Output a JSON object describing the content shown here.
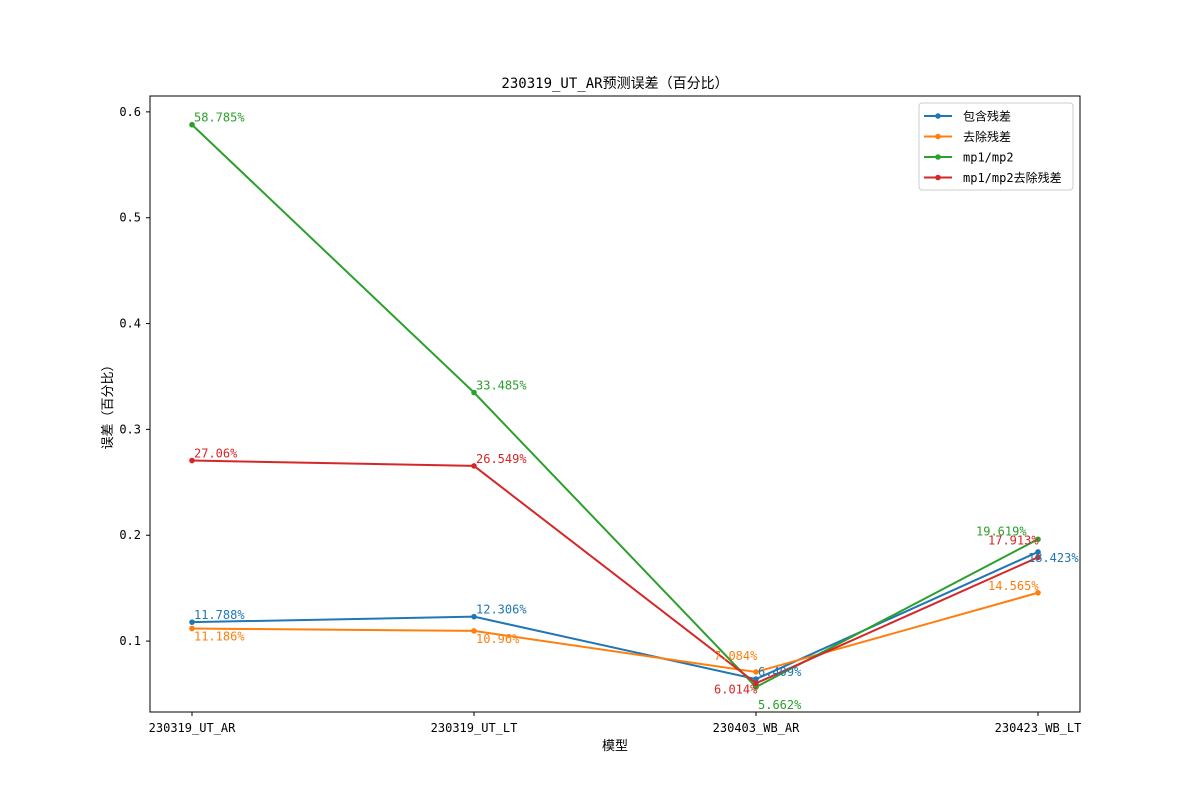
{
  "chart_data": {
    "type": "line",
    "title": "230319_UT_AR预测误差（百分比）",
    "xlabel": "模型",
    "ylabel": "误差（百分比）",
    "categories": [
      "230319_UT_AR",
      "230319_UT_LT",
      "230403_WB_AR",
      "230423_WB_LT"
    ],
    "ylim": [
      0.033,
      0.615
    ],
    "yticks": [
      "0.1",
      "0.2",
      "0.3",
      "0.4",
      "0.5",
      "0.6"
    ],
    "grid": false,
    "legend_position": "top-right",
    "series": [
      {
        "name": "包含残差",
        "color": "#1f77b4",
        "values": [
          0.11788,
          0.12306,
          0.06409,
          0.18423
        ],
        "labels": [
          "11.788%",
          "12.306%",
          "6.409%",
          "18.423%"
        ]
      },
      {
        "name": "去除残差",
        "color": "#ff7f0e",
        "values": [
          0.11186,
          0.1096,
          0.07084,
          0.14565
        ],
        "labels": [
          "11.186%",
          "10.96%",
          "7.084%",
          "14.565%"
        ]
      },
      {
        "name": "mp1/mp2",
        "color": "#2ca02c",
        "values": [
          0.58785,
          0.33485,
          0.05662,
          0.19619
        ],
        "labels": [
          "58.785%",
          "33.485%",
          "5.662%",
          "19.619%"
        ]
      },
      {
        "name": "mp1/mp2去除残差",
        "color": "#d62728",
        "values": [
          0.2706,
          0.26549,
          0.06014,
          0.17913
        ],
        "labels": [
          "27.06%",
          "26.549%",
          "6.014%",
          "17.913%"
        ]
      }
    ]
  }
}
